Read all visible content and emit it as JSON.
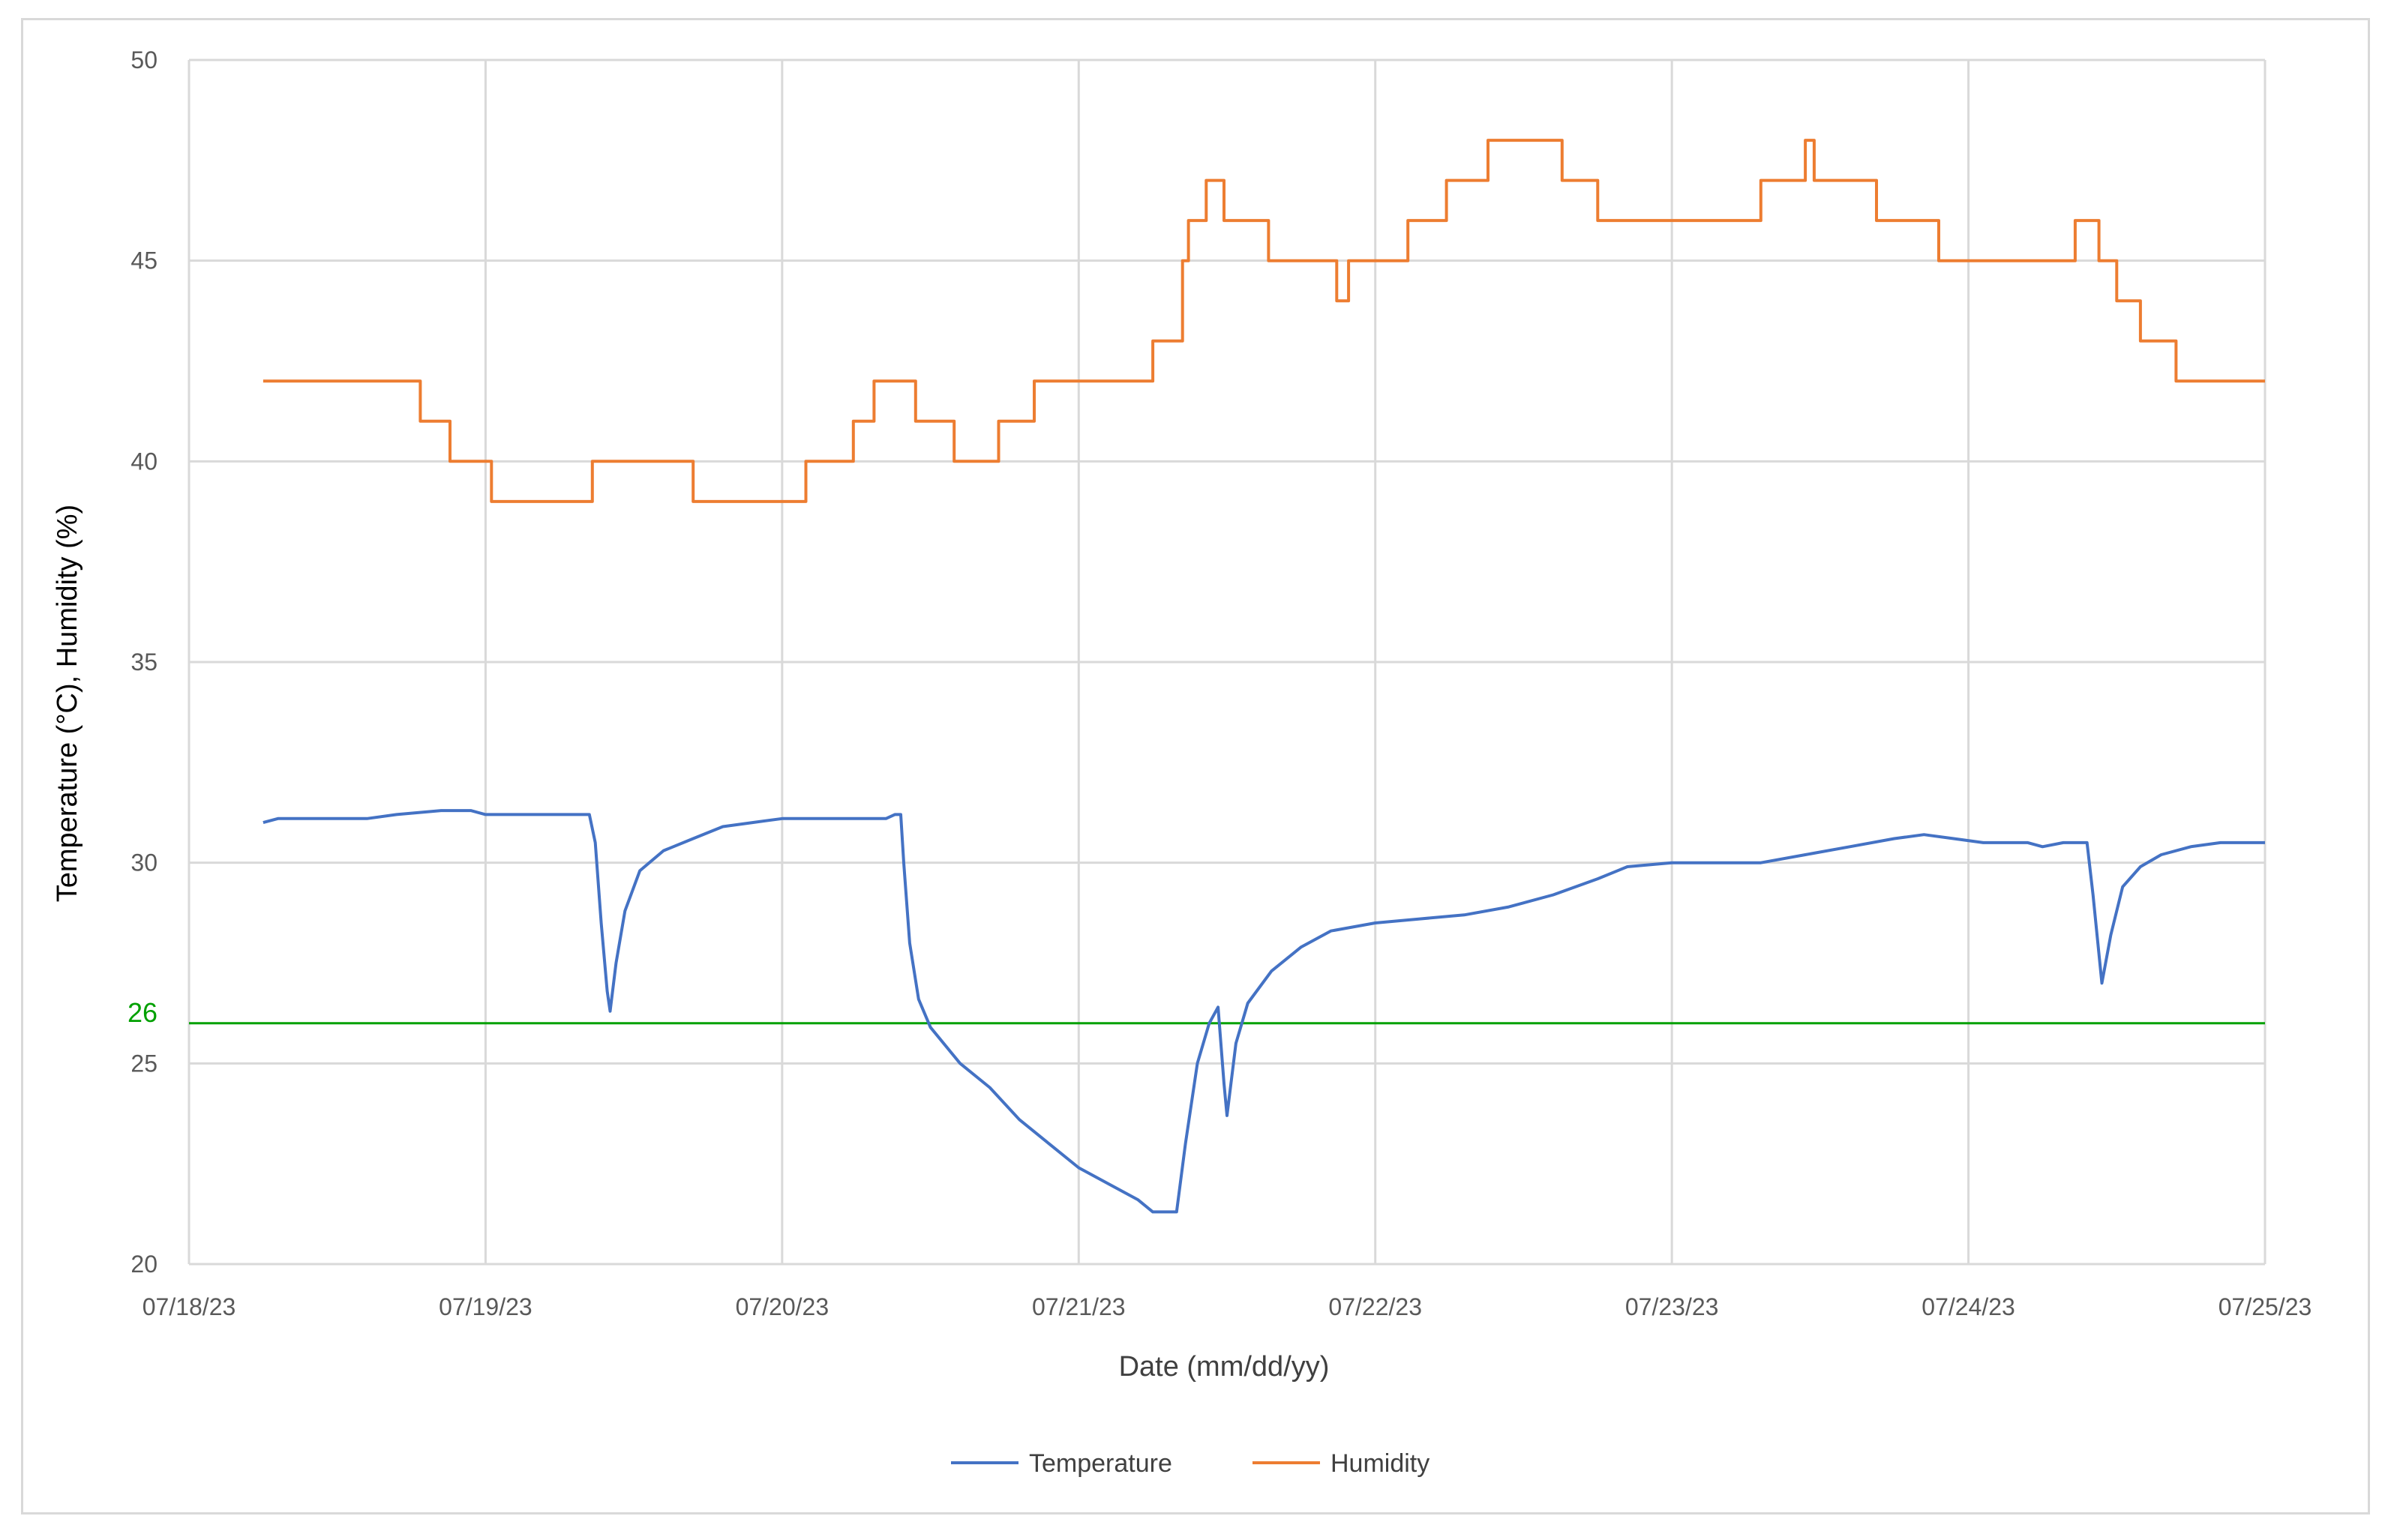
{
  "chart_data": {
    "type": "line",
    "title": "",
    "xlabel": "Date (mm/dd/yy)",
    "ylabel": "Temperature (°C), Humidity (%)",
    "ylim": [
      20,
      50
    ],
    "y_ticks": [
      "20",
      "25",
      "30",
      "35",
      "40",
      "45",
      "50"
    ],
    "x_ticks": [
      "07/18/23",
      "07/19/23",
      "07/20/23",
      "07/21/23",
      "07/22/23",
      "07/23/23",
      "07/24/23",
      "07/25/23"
    ],
    "grid": true,
    "legend_position": "bottom",
    "reference_line": {
      "value": 26,
      "label": "26",
      "color": "#00a000"
    },
    "series": [
      {
        "name": "Temperature",
        "color": "#4472c4",
        "points": [
          [
            0.25,
            31.0
          ],
          [
            0.3,
            31.1
          ],
          [
            0.6,
            31.1
          ],
          [
            0.7,
            31.2
          ],
          [
            0.85,
            31.3
          ],
          [
            0.95,
            31.3
          ],
          [
            1.0,
            31.2
          ],
          [
            1.3,
            31.2
          ],
          [
            1.35,
            31.2
          ],
          [
            1.37,
            30.5
          ],
          [
            1.39,
            28.5
          ],
          [
            1.41,
            26.8
          ],
          [
            1.42,
            26.3
          ],
          [
            1.44,
            27.5
          ],
          [
            1.47,
            28.8
          ],
          [
            1.52,
            29.8
          ],
          [
            1.6,
            30.3
          ],
          [
            1.7,
            30.6
          ],
          [
            1.8,
            30.9
          ],
          [
            1.9,
            31.0
          ],
          [
            2.0,
            31.1
          ],
          [
            2.35,
            31.1
          ],
          [
            2.38,
            31.2
          ],
          [
            2.4,
            31.2
          ],
          [
            2.41,
            30.0
          ],
          [
            2.43,
            28.0
          ],
          [
            2.46,
            26.6
          ],
          [
            2.5,
            25.9
          ],
          [
            2.6,
            25.0
          ],
          [
            2.7,
            24.4
          ],
          [
            2.8,
            23.6
          ],
          [
            2.9,
            23.0
          ],
          [
            3.0,
            22.4
          ],
          [
            3.1,
            22.0
          ],
          [
            3.2,
            21.6
          ],
          [
            3.25,
            21.3
          ],
          [
            3.33,
            21.3
          ],
          [
            3.36,
            23.0
          ],
          [
            3.4,
            25.0
          ],
          [
            3.44,
            26.0
          ],
          [
            3.47,
            26.4
          ],
          [
            3.49,
            24.5
          ],
          [
            3.5,
            23.7
          ],
          [
            3.53,
            25.5
          ],
          [
            3.57,
            26.5
          ],
          [
            3.65,
            27.3
          ],
          [
            3.75,
            27.9
          ],
          [
            3.85,
            28.3
          ],
          [
            4.0,
            28.5
          ],
          [
            4.15,
            28.6
          ],
          [
            4.3,
            28.7
          ],
          [
            4.45,
            28.9
          ],
          [
            4.6,
            29.2
          ],
          [
            4.75,
            29.6
          ],
          [
            4.85,
            29.9
          ],
          [
            5.0,
            30.0
          ],
          [
            5.3,
            30.0
          ],
          [
            5.45,
            30.2
          ],
          [
            5.6,
            30.4
          ],
          [
            5.75,
            30.6
          ],
          [
            5.85,
            30.7
          ],
          [
            5.95,
            30.6
          ],
          [
            6.05,
            30.5
          ],
          [
            6.2,
            30.5
          ],
          [
            6.25,
            30.4
          ],
          [
            6.32,
            30.5
          ],
          [
            6.4,
            30.5
          ],
          [
            6.42,
            29.2
          ],
          [
            6.45,
            27.0
          ],
          [
            6.48,
            28.2
          ],
          [
            6.52,
            29.4
          ],
          [
            6.58,
            29.9
          ],
          [
            6.65,
            30.2
          ],
          [
            6.75,
            30.4
          ],
          [
            6.85,
            30.5
          ],
          [
            7.0,
            30.5
          ]
        ]
      },
      {
        "name": "Humidity",
        "color": "#ed7d31",
        "points": [
          [
            0.25,
            42
          ],
          [
            0.78,
            42
          ],
          [
            0.78,
            41
          ],
          [
            0.88,
            41
          ],
          [
            0.88,
            40
          ],
          [
            1.02,
            40
          ],
          [
            1.02,
            39
          ],
          [
            1.36,
            39
          ],
          [
            1.36,
            40
          ],
          [
            1.7,
            40
          ],
          [
            1.7,
            39
          ],
          [
            2.08,
            39
          ],
          [
            2.08,
            40
          ],
          [
            2.24,
            40
          ],
          [
            2.24,
            41
          ],
          [
            2.31,
            41
          ],
          [
            2.31,
            42
          ],
          [
            2.45,
            42
          ],
          [
            2.45,
            41
          ],
          [
            2.58,
            41
          ],
          [
            2.58,
            40
          ],
          [
            2.73,
            40
          ],
          [
            2.73,
            41
          ],
          [
            2.85,
            41
          ],
          [
            2.85,
            42
          ],
          [
            3.25,
            42
          ],
          [
            3.25,
            43
          ],
          [
            3.35,
            43
          ],
          [
            3.35,
            45
          ],
          [
            3.37,
            45
          ],
          [
            3.37,
            46
          ],
          [
            3.43,
            46
          ],
          [
            3.43,
            47
          ],
          [
            3.49,
            47
          ],
          [
            3.49,
            46
          ],
          [
            3.64,
            46
          ],
          [
            3.64,
            45
          ],
          [
            3.87,
            45
          ],
          [
            3.87,
            44
          ],
          [
            3.91,
            44
          ],
          [
            3.91,
            45
          ],
          [
            4.11,
            45
          ],
          [
            4.11,
            46
          ],
          [
            4.24,
            46
          ],
          [
            4.24,
            47
          ],
          [
            4.38,
            47
          ],
          [
            4.38,
            48
          ],
          [
            4.63,
            48
          ],
          [
            4.63,
            47
          ],
          [
            4.75,
            47
          ],
          [
            4.75,
            46
          ],
          [
            5.3,
            46
          ],
          [
            5.3,
            47
          ],
          [
            5.45,
            47
          ],
          [
            5.45,
            48
          ],
          [
            5.48,
            48
          ],
          [
            5.48,
            47
          ],
          [
            5.69,
            47
          ],
          [
            5.69,
            46
          ],
          [
            5.9,
            46
          ],
          [
            5.9,
            45
          ],
          [
            6.36,
            45
          ],
          [
            6.36,
            46
          ],
          [
            6.44,
            46
          ],
          [
            6.44,
            45
          ],
          [
            6.5,
            45
          ],
          [
            6.5,
            44
          ],
          [
            6.58,
            44
          ],
          [
            6.58,
            43
          ],
          [
            6.7,
            43
          ],
          [
            6.7,
            42
          ],
          [
            7.0,
            42
          ]
        ]
      }
    ]
  }
}
